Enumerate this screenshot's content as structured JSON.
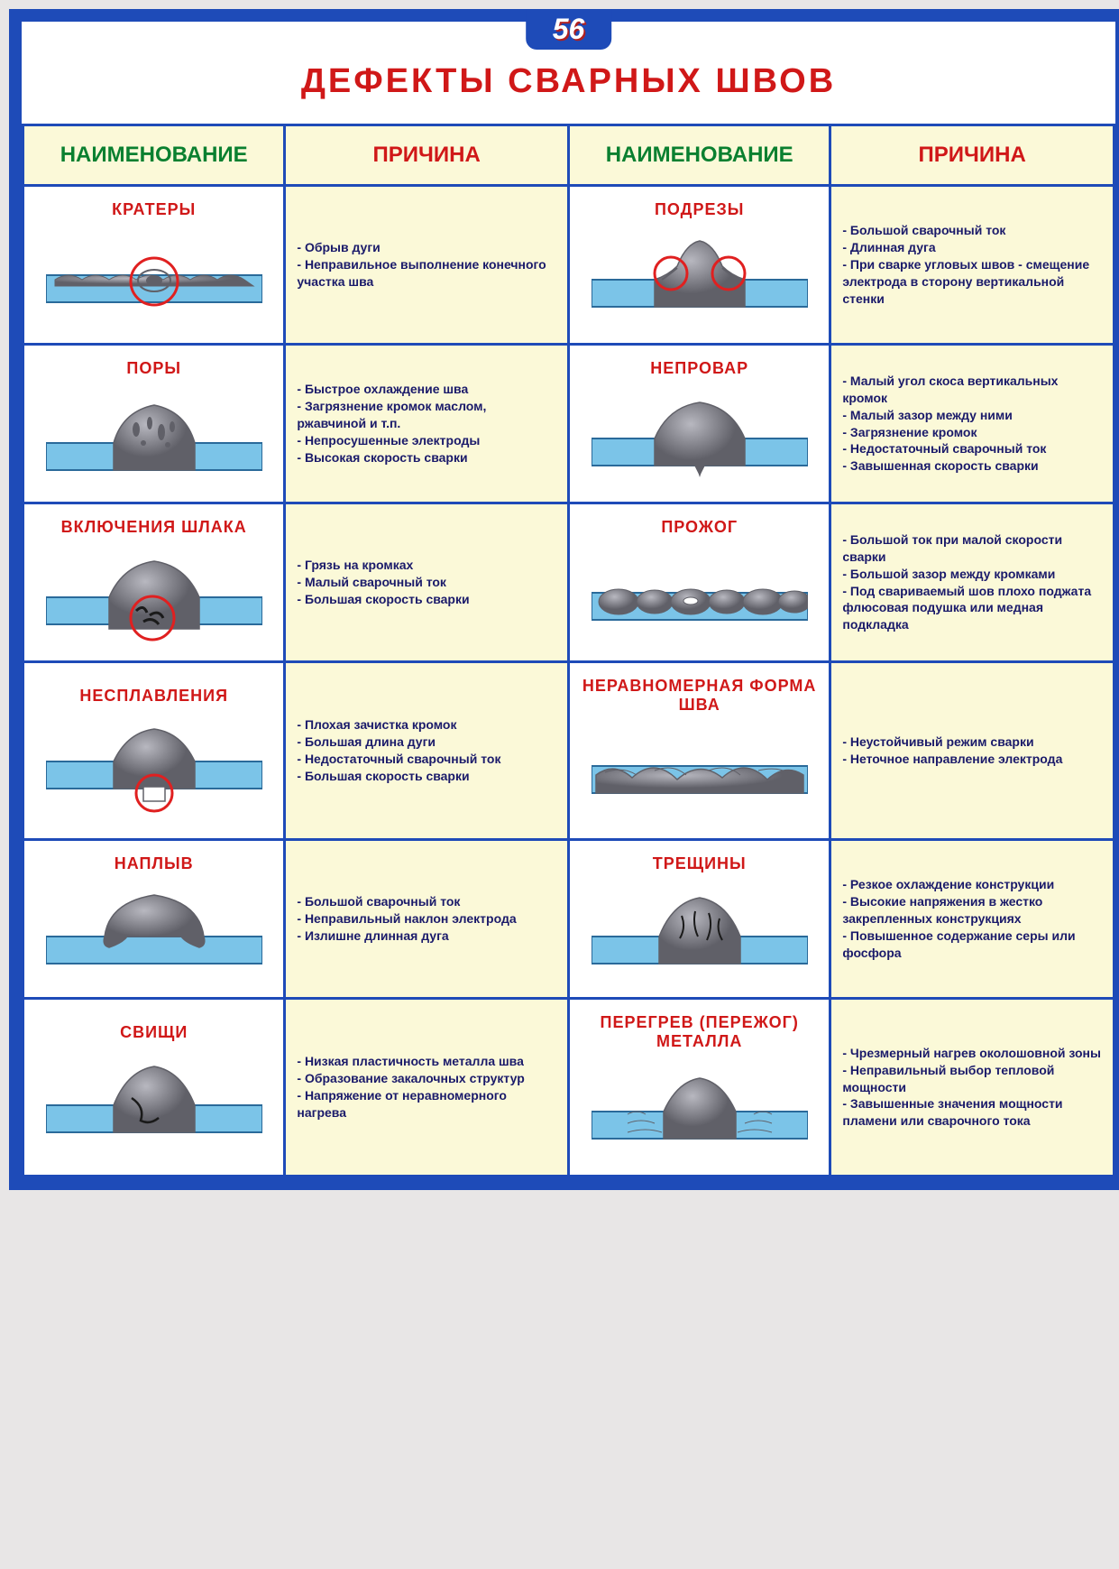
{
  "badge": "56",
  "title": "ДЕФЕКТЫ СВАРНЫХ ШВОВ",
  "headers": {
    "name": "НАИМЕНОВАНИЕ",
    "cause": "ПРИЧИНА"
  },
  "colors": {
    "border": "#1e4bb8",
    "title": "#d01818",
    "nameHeader": "#0a8030",
    "causeHeader": "#d01818",
    "causeBg": "#fbf9d8",
    "causeText": "#1a1a6a",
    "defectName": "#d01818",
    "metal": "#8a8a92",
    "metalLight": "#b8b8c0",
    "metalDark": "#606068",
    "plate": "#7bc4e8",
    "plateStroke": "#2a6a9a",
    "highlight": "#e02020"
  },
  "rows": [
    {
      "left": {
        "name": "КРАТЕРЫ",
        "causes": [
          "- Обрыв дуги",
          "- Неправильное выполнение конечного участка шва"
        ],
        "svg": "crater"
      },
      "right": {
        "name": "ПОДРЕЗЫ",
        "causes": [
          "- Большой сварочный ток",
          "- Длинная дуга",
          "- При сварке угловых швов - смещение электрода в сторону вертикальной стенки"
        ],
        "svg": "undercut"
      }
    },
    {
      "left": {
        "name": "ПОРЫ",
        "causes": [
          "- Быстрое охлаждение шва",
          "- Загрязнение кромок маслом, ржавчиной и т.п.",
          "- Непросушенные электроды",
          "- Высокая скорость сварки"
        ],
        "svg": "pores"
      },
      "right": {
        "name": "НЕПРОВАР",
        "causes": [
          "- Малый угол скоса вертикальных кромок",
          "- Малый зазор между ними",
          "- Загрязнение кромок",
          "- Недостаточный сварочный ток",
          "- Завышенная скорость сварки"
        ],
        "svg": "penetration"
      }
    },
    {
      "left": {
        "name": "ВКЛЮЧЕНИЯ ШЛАКА",
        "causes": [
          "- Грязь на кромках",
          "- Малый сварочный ток",
          "- Большая скорость сварки"
        ],
        "svg": "slag"
      },
      "right": {
        "name": "ПРОЖОГ",
        "causes": [
          "- Большой ток при малой скорости сварки",
          "- Большой зазор между кромками",
          "- Под свариваемый шов плохо поджата флюсовая подушка или медная подкладка"
        ],
        "svg": "burnthrough"
      }
    },
    {
      "left": {
        "name": "НЕСПЛАВЛЕНИЯ",
        "causes": [
          "- Плохая зачистка кромок",
          "- Большая длина дуги",
          "- Недостаточный сварочный ток",
          "- Большая скорость сварки"
        ],
        "svg": "fusion"
      },
      "right": {
        "name": "НЕРАВНОМЕРНАЯ ФОРМА ШВА",
        "causes": [
          "- Неустойчивый режим сварки",
          "- Неточное направление электрода"
        ],
        "svg": "uneven"
      }
    },
    {
      "left": {
        "name": "НАПЛЫВ",
        "causes": [
          "- Большой сварочный ток",
          "- Неправильный наклон электрода",
          "- Излишне длинная дуга"
        ],
        "svg": "overlap"
      },
      "right": {
        "name": "ТРЕЩИНЫ",
        "causes": [
          "- Резкое охлаждение конструкции",
          "- Высокие напряжения в жестко закрепленных конструкциях",
          "- Повышенное содержание серы или фосфора"
        ],
        "svg": "cracks"
      }
    },
    {
      "left": {
        "name": "СВИЩИ",
        "causes": [
          "- Низкая пластичность металла шва",
          "- Образование закалочных структур",
          "- Напряжение от неравномерного нагрева"
        ],
        "svg": "fistula"
      },
      "right": {
        "name": "ПЕРЕГРЕВ (ПЕРЕЖОГ) МЕТАЛЛА",
        "causes": [
          "- Чрезмерный нагрев околошовной зоны",
          "- Неправильный выбор тепловой мощности",
          "- Завышенные значения мощности пламени или сварочного тока"
        ],
        "svg": "overheat"
      }
    }
  ]
}
